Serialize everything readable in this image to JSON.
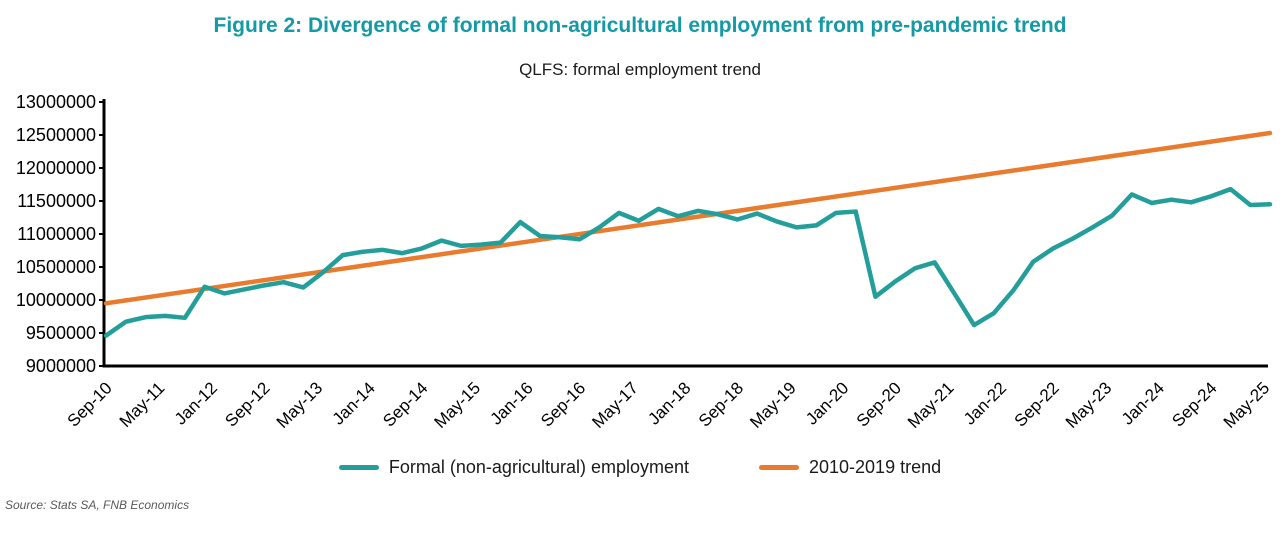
{
  "figure": {
    "title": "Figure 2: Divergence of formal non-agricultural employment from pre-pandemic trend",
    "subtitle": "QLFS: formal employment trend",
    "source": "Source: Stats SA, FNB Economics"
  },
  "colors": {
    "title_teal": "#1499A6",
    "employment_line": "#249E9A",
    "trend_line": "#E87B2D",
    "axis": "#000000",
    "source_gray": "#595959"
  },
  "legend": {
    "items": [
      {
        "label": "Formal (non-agricultural) employment",
        "color": "#249E9A"
      },
      {
        "label": "2010-2019 trend",
        "color": "#E87B2D"
      }
    ]
  },
  "chart_data": {
    "type": "line",
    "title": "QLFS: formal employment trend",
    "ylabel": "",
    "xlabel": "",
    "ylim": [
      9000000,
      13000000
    ],
    "y_ticks": [
      13000000,
      12500000,
      12000000,
      11500000,
      11000000,
      10500000,
      10000000,
      9500000,
      9000000
    ],
    "x_tick_labels": [
      "Sep-10",
      "May-11",
      "Jan-12",
      "Sep-12",
      "May-13",
      "Jan-14",
      "Sep-14",
      "May-15",
      "Jan-16",
      "Sep-16",
      "May-17",
      "Jan-18",
      "Sep-18",
      "May-19",
      "Jan-20",
      "Sep-20",
      "May-21",
      "Jan-22",
      "Sep-22",
      "May-23",
      "Jan-24",
      "Sep-24",
      "May-25"
    ],
    "x_tick_interval_months": 8,
    "grid": false,
    "legend_position": "bottom",
    "x": [
      "Sep-10",
      "Dec-10",
      "Mar-11",
      "Jun-11",
      "Sep-11",
      "Dec-11",
      "Mar-12",
      "Jun-12",
      "Sep-12",
      "Dec-12",
      "Mar-13",
      "Jun-13",
      "Sep-13",
      "Dec-13",
      "Mar-14",
      "Jun-14",
      "Sep-14",
      "Dec-14",
      "Mar-15",
      "Jun-15",
      "Sep-15",
      "Dec-15",
      "Mar-16",
      "Jun-16",
      "Sep-16",
      "Dec-16",
      "Mar-17",
      "Jun-17",
      "Sep-17",
      "Dec-17",
      "Mar-18",
      "Jun-18",
      "Sep-18",
      "Dec-18",
      "Mar-19",
      "Jun-19",
      "Sep-19",
      "Dec-19",
      "Mar-20",
      "Jun-20",
      "Sep-20",
      "Dec-20",
      "Mar-21",
      "Jun-21",
      "Sep-21",
      "Dec-21",
      "Mar-22",
      "Jun-22",
      "Sep-22",
      "Dec-22",
      "Mar-23",
      "Jun-23",
      "Sep-23",
      "Dec-23",
      "Mar-24",
      "Jun-24",
      "Sep-24",
      "Dec-24",
      "Mar-25",
      "Jun-25"
    ],
    "series": [
      {
        "name": "Formal (non-agricultural) employment",
        "type": "line",
        "color": "#249E9A",
        "values": [
          9460000,
          9670000,
          9740000,
          9760000,
          9730000,
          10200000,
          10100000,
          10160000,
          10220000,
          10270000,
          10190000,
          10420000,
          10680000,
          10730000,
          10760000,
          10710000,
          10780000,
          10900000,
          10820000,
          10840000,
          10870000,
          11180000,
          10970000,
          10950000,
          10920000,
          11100000,
          11320000,
          11200000,
          11380000,
          11270000,
          11350000,
          11300000,
          11220000,
          11310000,
          11190000,
          11100000,
          11130000,
          11320000,
          11340000,
          10050000,
          10280000,
          10480000,
          10570000,
          10100000,
          9620000,
          9800000,
          10150000,
          10580000,
          10780000,
          10930000,
          11100000,
          11280000,
          11600000,
          11470000,
          11520000,
          11480000,
          11570000,
          11680000,
          11440000,
          11450000
        ]
      },
      {
        "name": "2010-2019 trend",
        "type": "linear-trend",
        "color": "#E87B2D",
        "start_value": 9950000,
        "end_value": 12530000
      }
    ]
  }
}
